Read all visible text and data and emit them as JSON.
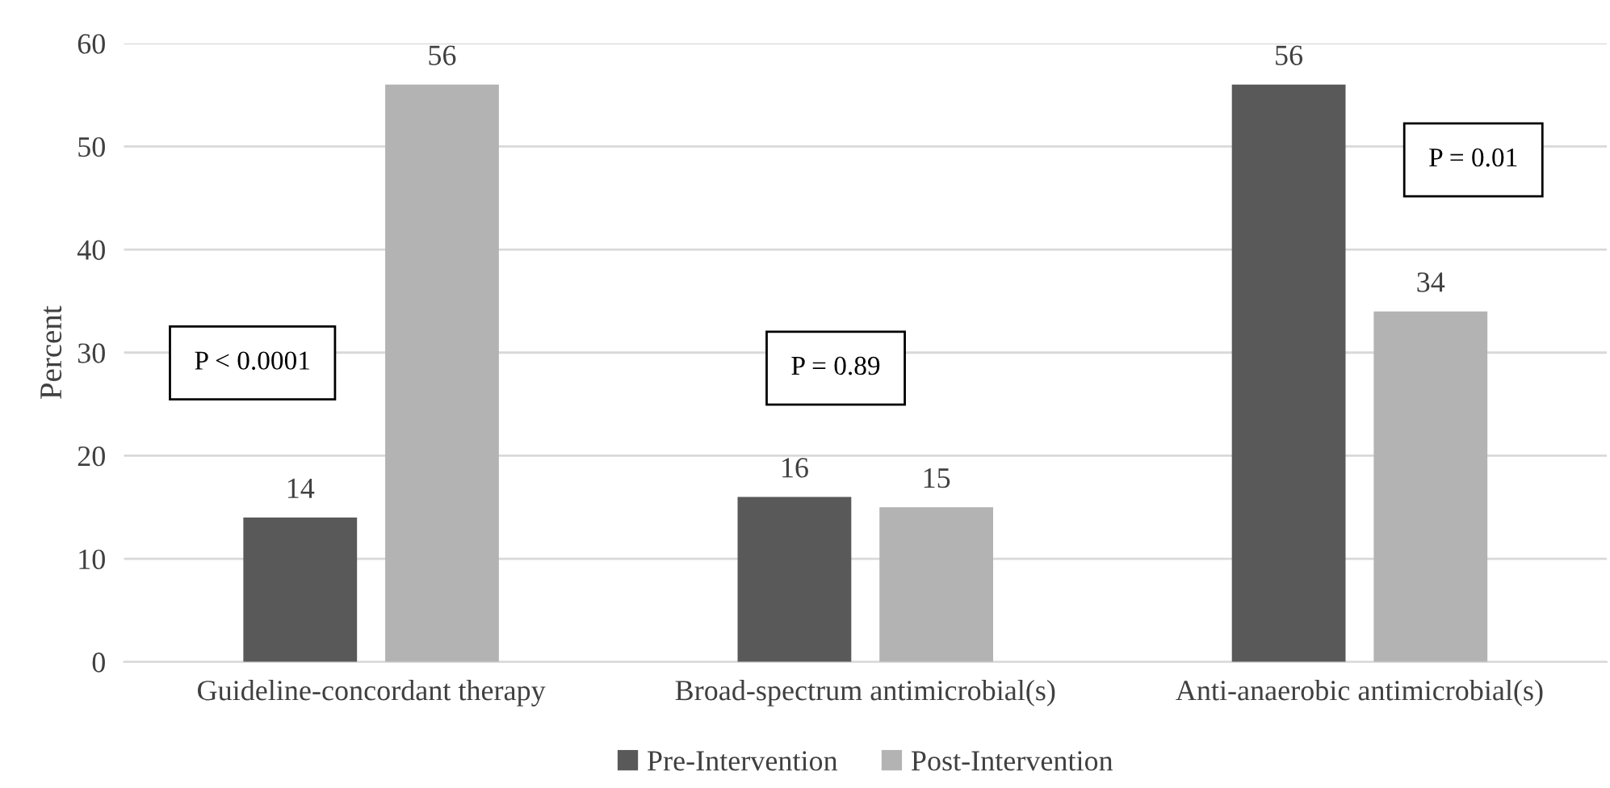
{
  "chart_data": {
    "type": "bar",
    "ylabel": "Percent",
    "categories": [
      "Guideline-concordant therapy",
      "Broad-spectrum antimicrobial(s)",
      "Anti-anaerobic antimicrobial(s)"
    ],
    "series": [
      {
        "name": "Pre-Intervention",
        "color": "#595959",
        "values": [
          14,
          16,
          56
        ]
      },
      {
        "name": "Post-Intervention",
        "color": "#b3b3b3",
        "values": [
          56,
          15,
          34
        ]
      }
    ],
    "annotations": [
      "P < 0.0001",
      "P = 0.89",
      "P = 0.01"
    ],
    "ylim": [
      0,
      60
    ],
    "yticks": [
      0,
      10,
      20,
      30,
      40,
      50,
      60
    ],
    "grid": "y",
    "legend": "bottom",
    "data_labels": true
  }
}
